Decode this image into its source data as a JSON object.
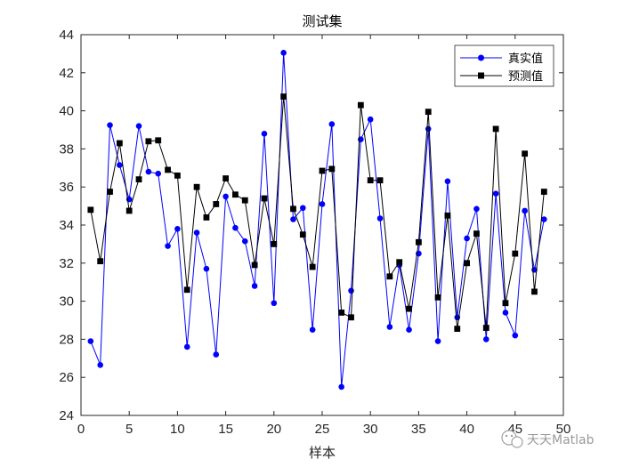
{
  "chart_data": {
    "type": "line",
    "title": "测试集",
    "xlabel": "样本",
    "ylabel": "",
    "xlim": [
      0,
      50
    ],
    "ylim": [
      24,
      44
    ],
    "xticks": [
      0,
      5,
      10,
      15,
      20,
      25,
      30,
      35,
      40,
      45,
      50
    ],
    "yticks": [
      24,
      26,
      28,
      30,
      32,
      34,
      36,
      38,
      40,
      42,
      44
    ],
    "grid": false,
    "legend_position": "top-right",
    "x": [
      1,
      2,
      3,
      4,
      5,
      6,
      7,
      8,
      9,
      10,
      11,
      12,
      13,
      14,
      15,
      16,
      17,
      18,
      19,
      20,
      21,
      22,
      23,
      24,
      25,
      26,
      27,
      28,
      29,
      30,
      31,
      32,
      33,
      34,
      35,
      36,
      37,
      38,
      39,
      40,
      41,
      42,
      43,
      44,
      45,
      46,
      47,
      48
    ],
    "series": [
      {
        "name": "真实值",
        "color": "#0000ff",
        "marker": "circle",
        "values": [
          27.9,
          26.65,
          39.25,
          37.15,
          35.35,
          39.2,
          36.8,
          36.7,
          32.9,
          33.8,
          27.6,
          33.6,
          31.7,
          27.2,
          35.5,
          33.85,
          33.15,
          30.8,
          38.8,
          29.9,
          43.05,
          34.3,
          34.9,
          28.5,
          35.1,
          39.3,
          25.5,
          30.55,
          38.5,
          39.55,
          34.35,
          28.65,
          31.9,
          28.5,
          32.5,
          39.05,
          27.9,
          36.3,
          29.15,
          33.3,
          34.85,
          28.0,
          35.65,
          29.4,
          28.2,
          34.75,
          31.65,
          34.3
        ]
      },
      {
        "name": "预测值",
        "color": "#000000",
        "marker": "square",
        "values": [
          34.8,
          32.1,
          35.75,
          38.3,
          34.75,
          36.4,
          38.4,
          38.45,
          36.9,
          36.6,
          30.6,
          36.0,
          34.4,
          35.1,
          36.45,
          35.6,
          35.3,
          31.9,
          35.4,
          33.0,
          40.75,
          34.85,
          33.5,
          31.8,
          36.85,
          36.95,
          29.4,
          29.15,
          40.3,
          36.35,
          36.35,
          31.3,
          32.05,
          29.6,
          33.1,
          39.95,
          30.2,
          34.5,
          28.55,
          32.0,
          33.55,
          28.6,
          39.05,
          29.9,
          32.5,
          37.75,
          30.5,
          35.75
        ]
      }
    ]
  },
  "watermark": {
    "icon": "wechat-icon",
    "text": "天天Matlab"
  }
}
